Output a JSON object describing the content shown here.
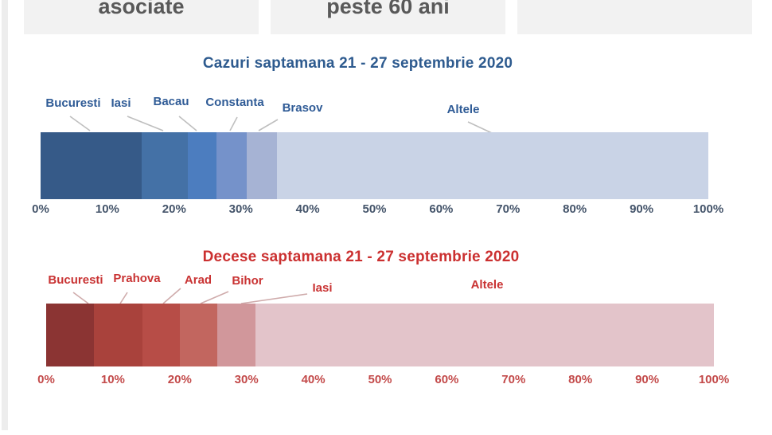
{
  "top_cards": {
    "bg_color": "#f2f2f2",
    "text_color": "#595959",
    "cards": [
      {
        "label": "asociate"
      },
      {
        "label": "peste 60 ani"
      },
      {
        "label": ""
      }
    ]
  },
  "chart_data": [
    {
      "type": "bar",
      "subtype": "horizontal-stacked-100pct",
      "title": "Cazuri saptamana 21 - 27 septembrie 2020",
      "title_color": "#2e5b8f",
      "callout_color": "#2f5b96",
      "leader_line_color": "#bfbfbf",
      "x_axis": {
        "range": [
          0,
          100
        ],
        "label_color": "#44546a",
        "ticks": [
          "0%",
          "10%",
          "20%",
          "30%",
          "40%",
          "50%",
          "60%",
          "70%",
          "80%",
          "90%",
          "100%"
        ]
      },
      "segments": [
        {
          "name": "Bucuresti",
          "value": 15.1,
          "color": "#365a88"
        },
        {
          "name": "Iasi",
          "value": 6.9,
          "color": "#4471a6"
        },
        {
          "name": "Bacau",
          "value": 4.4,
          "color": "#4c7dbf"
        },
        {
          "name": "Constanta",
          "value": 4.5,
          "color": "#7592ca"
        },
        {
          "name": "Brasov",
          "value": 4.5,
          "color": "#a6b3d4"
        },
        {
          "name": "Altele",
          "value": 64.6,
          "color": "#c9d3e6"
        }
      ]
    },
    {
      "type": "bar",
      "subtype": "horizontal-stacked-100pct",
      "title": "Decese saptamana 21 - 27 septembrie 2020",
      "title_color": "#cb3030",
      "callout_color": "#c93333",
      "leader_line_color": "#cfabab",
      "x_axis": {
        "range": [
          0,
          100
        ],
        "label_color": "#c34a4a",
        "ticks": [
          "0%",
          "10%",
          "20%",
          "30%",
          "40%",
          "50%",
          "60%",
          "70%",
          "80%",
          "90%",
          "100%"
        ]
      },
      "segments": [
        {
          "name": "Bucuresti",
          "value": 7.2,
          "color": "#8b3433"
        },
        {
          "name": "Prahova",
          "value": 7.2,
          "color": "#a9423c"
        },
        {
          "name": "Arad",
          "value": 5.6,
          "color": "#b74d47"
        },
        {
          "name": "Bihor",
          "value": 5.6,
          "color": "#c2665f"
        },
        {
          "name": "Iasi",
          "value": 5.7,
          "color": "#d1979b"
        },
        {
          "name": "Altele",
          "value": 68.7,
          "color": "#e3c4ca"
        }
      ]
    }
  ]
}
